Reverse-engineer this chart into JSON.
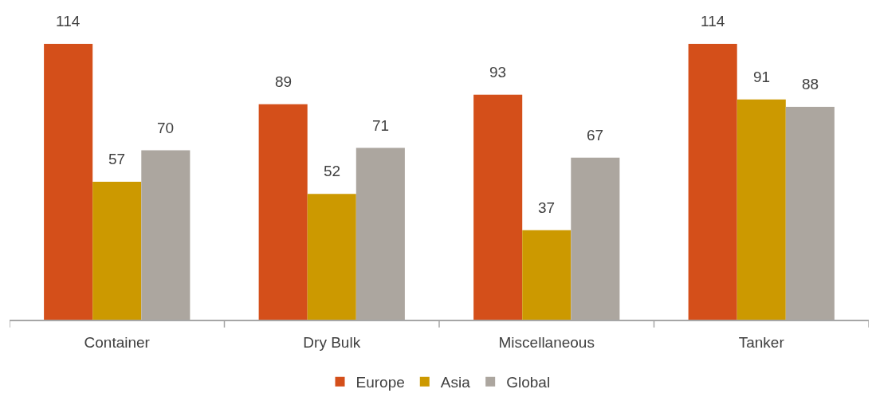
{
  "chart_data": {
    "type": "bar",
    "categories": [
      "Container",
      "Dry Bulk",
      "Miscellaneous",
      "Tanker"
    ],
    "series": [
      {
        "name": "Europe",
        "color": "#d44f1a",
        "values": [
          114,
          89,
          93,
          114
        ]
      },
      {
        "name": "Asia",
        "color": "#cc9900",
        "values": [
          57,
          52,
          37,
          91
        ]
      },
      {
        "name": "Global",
        "color": "#aca69f",
        "values": [
          70,
          71,
          67,
          88
        ]
      }
    ],
    "data_labels": true,
    "legend": "bottom"
  }
}
